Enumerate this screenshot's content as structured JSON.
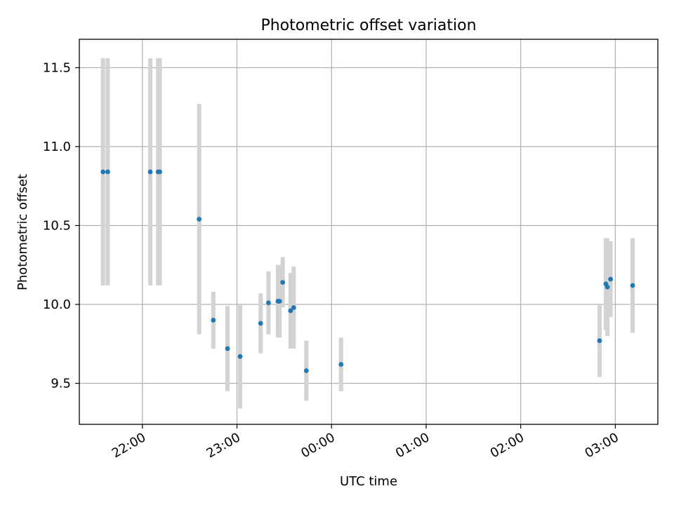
{
  "chart_data": {
    "type": "scatter",
    "title": "Photometric offset variation",
    "xlabel": "UTC time",
    "ylabel": "Photometric offset",
    "x_is_time": true,
    "xlim": [
      "21:20",
      "03:27"
    ],
    "ylim": [
      9.24,
      11.68
    ],
    "x_ticks": [
      "22:00",
      "23:00",
      "00:00",
      "01:00",
      "02:00",
      "03:00"
    ],
    "y_ticks": [
      "9.5",
      "10.0",
      "10.5",
      "11.0",
      "11.5"
    ],
    "grid": true,
    "colors": {
      "point": "#1f77b4",
      "error_bar": "#d3d3d3"
    },
    "series": [
      {
        "points": [
          {
            "x": "21:35",
            "y": 10.84,
            "yerr": 0.72
          },
          {
            "x": "21:38",
            "y": 10.84,
            "yerr": 0.72
          },
          {
            "x": "22:05",
            "y": 10.84,
            "yerr": 0.72
          },
          {
            "x": "22:10",
            "y": 10.84,
            "yerr": 0.72
          },
          {
            "x": "22:11",
            "y": 10.84,
            "yerr": 0.72
          },
          {
            "x": "22:36",
            "y": 10.54,
            "yerr": 0.73
          },
          {
            "x": "22:45",
            "y": 9.9,
            "yerr": 0.18
          },
          {
            "x": "22:54",
            "y": 9.72,
            "yerr": 0.27
          },
          {
            "x": "23:02",
            "y": 9.67,
            "yerr": 0.33
          },
          {
            "x": "23:15",
            "y": 9.88,
            "yerr": 0.19
          },
          {
            "x": "23:20",
            "y": 10.01,
            "yerr": 0.2
          },
          {
            "x": "23:26",
            "y": 10.02,
            "yerr": 0.23
          },
          {
            "x": "23:27",
            "y": 10.02,
            "yerr": 0.23
          },
          {
            "x": "23:29",
            "y": 10.14,
            "yerr": 0.16
          },
          {
            "x": "23:34",
            "y": 9.96,
            "yerr": 0.24
          },
          {
            "x": "23:36",
            "y": 9.98,
            "yerr": 0.26
          },
          {
            "x": "23:44",
            "y": 9.58,
            "yerr": 0.19
          },
          {
            "x": "00:06",
            "y": 9.62,
            "yerr": 0.17
          },
          {
            "x": "02:50",
            "y": 9.77,
            "yerr": 0.23
          },
          {
            "x": "02:54",
            "y": 10.13,
            "yerr": 0.29
          },
          {
            "x": "02:55",
            "y": 10.11,
            "yerr": 0.31
          },
          {
            "x": "02:57",
            "y": 10.16,
            "yerr": 0.24
          },
          {
            "x": "03:11",
            "y": 10.12,
            "yerr": 0.3
          }
        ]
      }
    ]
  }
}
